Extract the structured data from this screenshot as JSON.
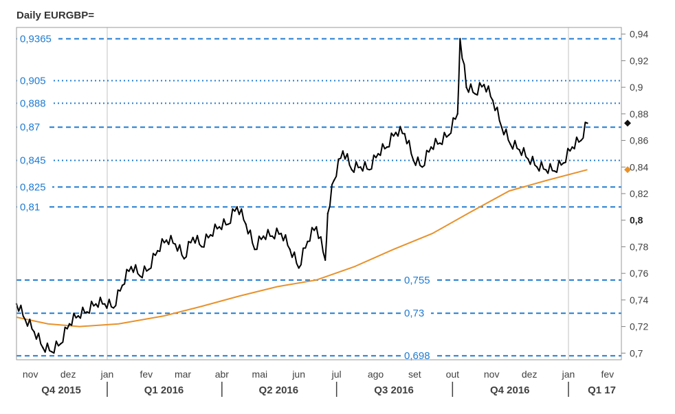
{
  "title": "Daily EURGBP=",
  "chart_data": {
    "type": "line",
    "title": "Daily EURGBP=",
    "xlabel": "",
    "ylabel": "",
    "ylim": [
      0.695,
      0.945
    ],
    "y_ticks": [
      "0,94",
      "0,92",
      "0,9",
      "0,88",
      "0,86",
      "0,84",
      "0,82",
      "0,8",
      "0,78",
      "0,76",
      "0,74",
      "0,72",
      "0,7"
    ],
    "y_tick_values": [
      0.94,
      0.92,
      0.9,
      0.88,
      0.86,
      0.84,
      0.82,
      0.8,
      0.78,
      0.76,
      0.74,
      0.72,
      0.7
    ],
    "bold_tick": "0,8",
    "months": [
      "nov",
      "dez",
      "jan",
      "fev",
      "mar",
      "abr",
      "mai",
      "jun",
      "jul",
      "ago",
      "set",
      "out",
      "nov",
      "dez",
      "jan",
      "fev"
    ],
    "month_dates": [
      "2015-11",
      "2015-12",
      "2016-01",
      "2016-02",
      "2016-03",
      "2016-04",
      "2016-05",
      "2016-06",
      "2016-07",
      "2016-08",
      "2016-09",
      "2016-10",
      "2016-11",
      "2016-12",
      "2017-01",
      "2017-02"
    ],
    "quarters": [
      "Q4 2015",
      "Q1 2016",
      "Q2 2016",
      "Q3 2016",
      "Q4 2016",
      "Q1 17"
    ],
    "levels": [
      {
        "label": "0,9365",
        "value": 0.9365,
        "style": "dashed",
        "label_side": "left"
      },
      {
        "label": "0,905",
        "value": 0.905,
        "style": "dotted",
        "label_side": "left"
      },
      {
        "label": "0,888",
        "value": 0.888,
        "style": "dotted",
        "label_side": "left"
      },
      {
        "label": "0,87",
        "value": 0.87,
        "style": "dashed",
        "label_side": "left"
      },
      {
        "label": "0,845",
        "value": 0.845,
        "style": "dotted",
        "label_side": "left"
      },
      {
        "label": "0,825",
        "value": 0.825,
        "style": "dashed",
        "label_side": "left"
      },
      {
        "label": "0,81",
        "value": 0.81,
        "style": "dashed",
        "label_side": "left"
      },
      {
        "label": "0,755",
        "value": 0.755,
        "style": "dashed",
        "label_side": "middle"
      },
      {
        "label": "0,73",
        "value": 0.73,
        "style": "dashed",
        "label_side": "middle"
      },
      {
        "label": "0,698",
        "value": 0.698,
        "style": "dashed",
        "label_side": "middle"
      }
    ],
    "series": [
      {
        "kind": "price",
        "color": "#000000",
        "x": [
          "2015-10-21",
          "2015-10-28",
          "2015-11-04",
          "2015-11-11",
          "2015-11-18",
          "2015-11-25",
          "2015-12-02",
          "2015-12-09",
          "2015-12-16",
          "2015-12-23",
          "2015-12-30",
          "2016-01-06",
          "2016-01-13",
          "2016-01-20",
          "2016-01-27",
          "2016-02-03",
          "2016-02-10",
          "2016-02-17",
          "2016-02-24",
          "2016-03-02",
          "2016-03-09",
          "2016-03-16",
          "2016-03-23",
          "2016-03-30",
          "2016-04-06",
          "2016-04-13",
          "2016-04-20",
          "2016-04-27",
          "2016-05-04",
          "2016-05-11",
          "2016-05-18",
          "2016-05-25",
          "2016-06-01",
          "2016-06-08",
          "2016-06-15",
          "2016-06-22",
          "2016-06-24",
          "2016-06-29",
          "2016-07-06",
          "2016-07-13",
          "2016-07-20",
          "2016-07-27",
          "2016-08-03",
          "2016-08-10",
          "2016-08-17",
          "2016-08-24",
          "2016-08-31",
          "2016-09-07",
          "2016-09-14",
          "2016-09-21",
          "2016-09-28",
          "2016-10-05",
          "2016-10-07",
          "2016-10-12",
          "2016-10-19",
          "2016-10-26",
          "2016-11-02",
          "2016-11-09",
          "2016-11-16",
          "2016-11-23",
          "2016-11-30",
          "2016-12-07",
          "2016-12-14",
          "2016-12-21",
          "2016-12-28",
          "2017-01-04",
          "2017-01-11",
          "2017-01-16"
        ],
        "values": [
          0.737,
          0.725,
          0.716,
          0.704,
          0.701,
          0.707,
          0.722,
          0.728,
          0.731,
          0.737,
          0.737,
          0.734,
          0.751,
          0.765,
          0.758,
          0.763,
          0.777,
          0.785,
          0.782,
          0.771,
          0.787,
          0.78,
          0.789,
          0.795,
          0.797,
          0.81,
          0.797,
          0.778,
          0.788,
          0.788,
          0.79,
          0.778,
          0.764,
          0.784,
          0.795,
          0.77,
          0.805,
          0.83,
          0.852,
          0.838,
          0.84,
          0.838,
          0.85,
          0.855,
          0.866,
          0.865,
          0.845,
          0.84,
          0.855,
          0.858,
          0.864,
          0.88,
          0.9365,
          0.9,
          0.895,
          0.902,
          0.89,
          0.87,
          0.857,
          0.853,
          0.846,
          0.84,
          0.838,
          0.837,
          0.843,
          0.855,
          0.86,
          0.873
        ]
      },
      {
        "kind": "moving-average",
        "color": "#e8912a",
        "x": [
          "2015-10-21",
          "2015-11-15",
          "2015-12-10",
          "2016-01-10",
          "2016-02-15",
          "2016-03-15",
          "2016-04-15",
          "2016-05-15",
          "2016-06-15",
          "2016-07-15",
          "2016-08-15",
          "2016-09-15",
          "2016-10-15",
          "2016-11-15",
          "2016-12-15",
          "2017-01-16"
        ],
        "values": [
          0.727,
          0.722,
          0.72,
          0.722,
          0.728,
          0.735,
          0.743,
          0.75,
          0.755,
          0.765,
          0.778,
          0.79,
          0.806,
          0.822,
          0.83,
          0.838
        ]
      }
    ],
    "markers": [
      {
        "value": 0.873,
        "color": "#111111"
      },
      {
        "value": 0.838,
        "color": "#e8912a"
      }
    ],
    "grid": "vertical lines at January",
    "colors": {
      "level": "#1f7bd0",
      "price": "#000000",
      "moving_average": "#e8912a"
    }
  }
}
